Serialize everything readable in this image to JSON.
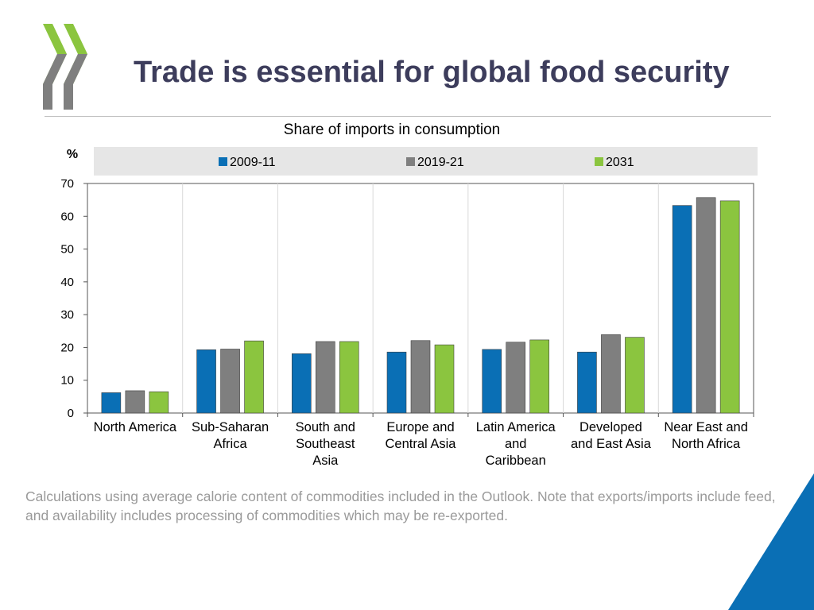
{
  "page": {
    "title": "Trade is essential for global food security",
    "note": "Calculations using average calorie content of commodities included in the Outlook. Note that exports/imports include feed, and availability includes processing of commodities which may be re-exported.",
    "colors": {
      "title": "#3d3d5c",
      "accent_blue": "#0a6fb5",
      "logo_green": "#8bc53f",
      "logo_gray": "#7f7f7f"
    }
  },
  "chart_data": {
    "type": "bar",
    "title": "Share of imports in consumption",
    "ylabel": "%",
    "xlabel": "",
    "ylim": [
      0,
      70
    ],
    "yticks": [
      0,
      10,
      20,
      30,
      40,
      50,
      60,
      70
    ],
    "legend_position": "top",
    "categories": [
      [
        "North America"
      ],
      [
        "Sub-Saharan",
        "Africa"
      ],
      [
        "South and",
        "Southeast",
        "Asia"
      ],
      [
        "Europe and",
        "Central Asia"
      ],
      [
        "Latin America",
        "and",
        "Caribbean"
      ],
      [
        "Developed",
        "and East Asia"
      ],
      [
        "Near East and",
        "North Africa"
      ]
    ],
    "series": [
      {
        "name": "2009-11",
        "color": "#0a6fb5",
        "values": [
          6.2,
          19.3,
          18.1,
          18.6,
          19.4,
          18.6,
          63.3
        ]
      },
      {
        "name": "2019-21",
        "color": "#7f7f7f",
        "values": [
          6.8,
          19.5,
          21.8,
          22.1,
          21.6,
          23.9,
          65.7
        ]
      },
      {
        "name": "2031",
        "color": "#8bc53f",
        "values": [
          6.5,
          22.0,
          21.8,
          20.8,
          22.3,
          23.1,
          64.7
        ]
      }
    ]
  }
}
